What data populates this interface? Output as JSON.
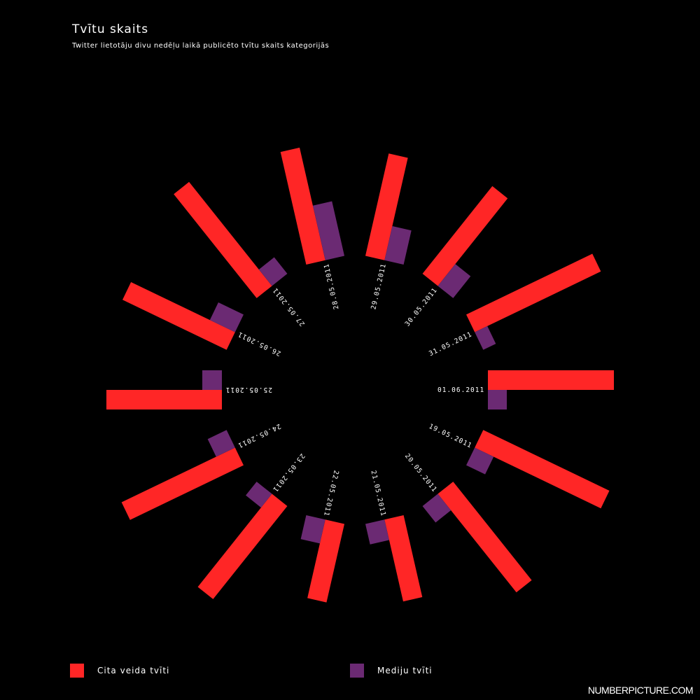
{
  "header": {
    "title": "Tvītu skaits",
    "subtitle": "Twitter lietotāju divu nedēļu laikā publicēto tvītu skaits kategorijās"
  },
  "legend": {
    "other_label": "Cita veida tvīti",
    "media_label": "Mediju tvīti"
  },
  "watermark": "NUMBERPICTURE.COM",
  "colors": {
    "other": "#ff2626",
    "media": "#6b2a73",
    "background": "#000000",
    "text": "#ffffff"
  },
  "chart_data": {
    "type": "bar",
    "layout": "radial",
    "categories": [
      "01.06.2011",
      "31.05.2011",
      "30.05.2011",
      "29.05.2011",
      "28.05.2011",
      "27.05.2011",
      "26.05.2011",
      "25.05.2011",
      "24.05.2011",
      "23.05.2011",
      "22.05.2011",
      "21.05.2011",
      "20.05.2011",
      "19.05.2011"
    ],
    "series": [
      {
        "name": "Cita veida tvīti",
        "values": [
          180,
          200,
          160,
          150,
          165,
          190,
          165,
          165,
          180,
          170,
          115,
          120,
          180,
          200
        ]
      },
      {
        "name": "Mediju tvīti",
        "values": [
          27,
          20,
          40,
          50,
          80,
          30,
          40,
          28,
          30,
          25,
          35,
          30,
          30,
          30
        ]
      }
    ]
  }
}
